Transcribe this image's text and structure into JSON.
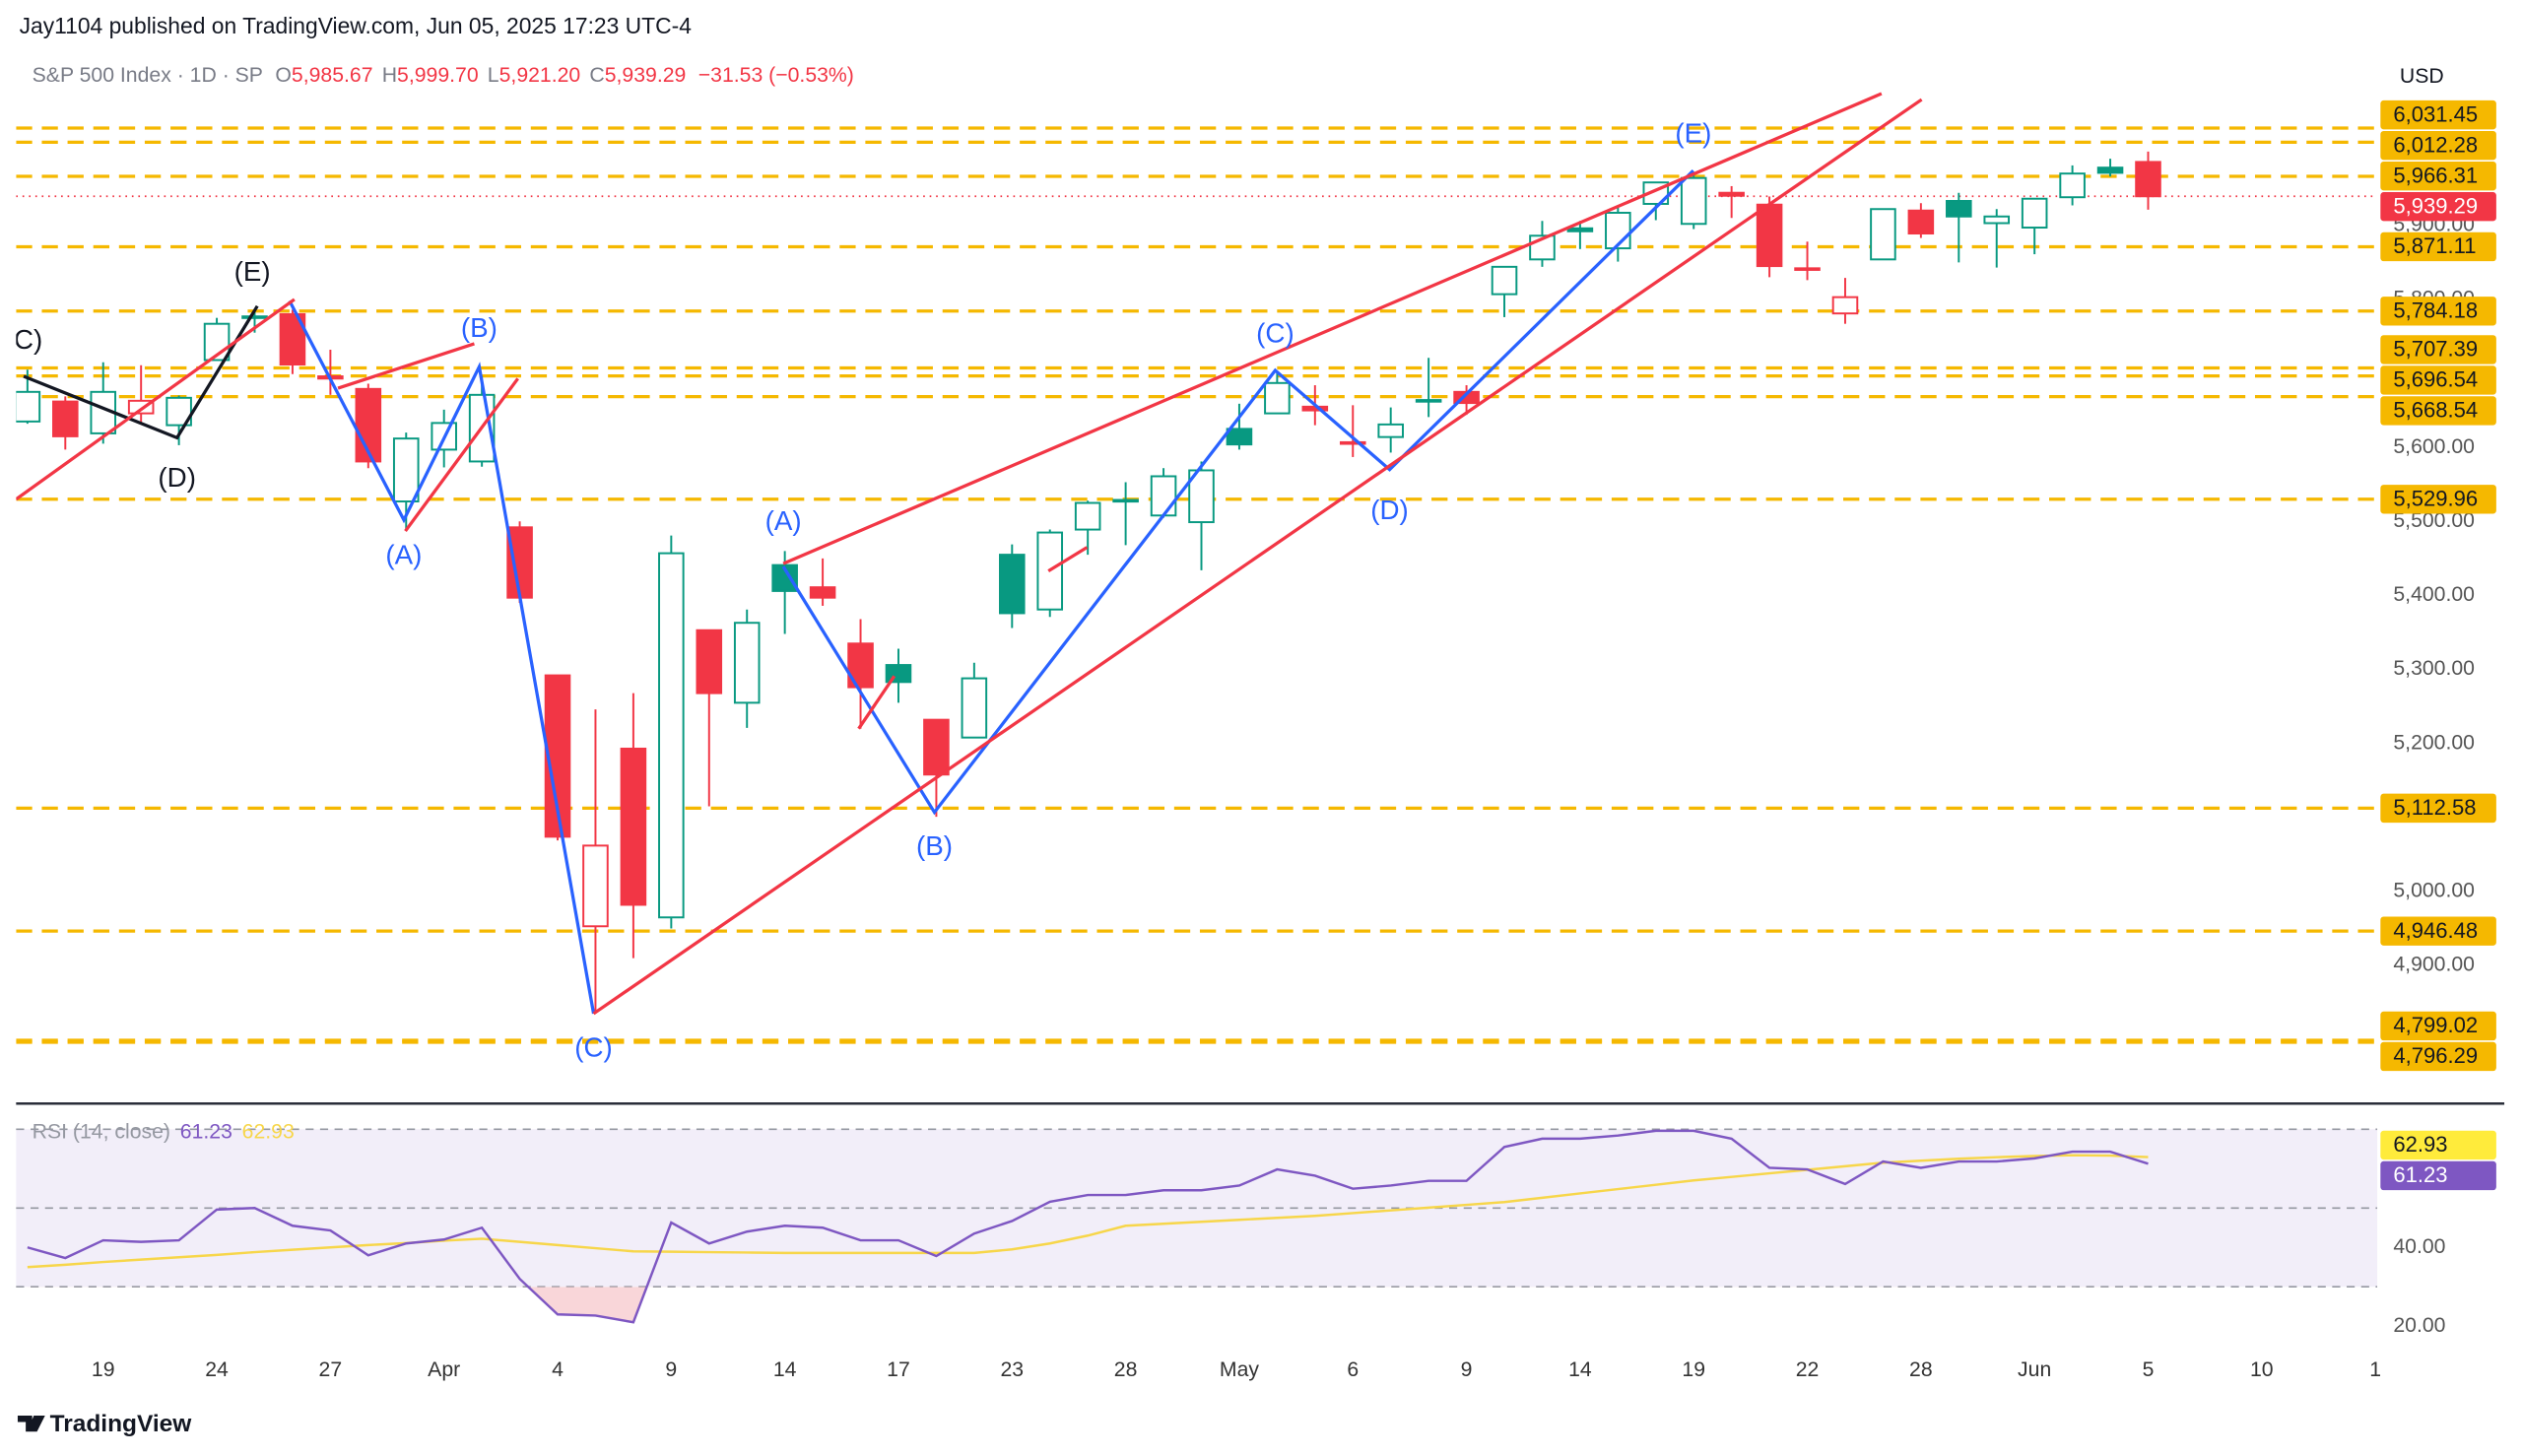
{
  "header": {
    "published": "Jay1104 published on TradingView.com, Jun 05, 2025 17:23 UTC-4",
    "symbol": "S&P 500 Index · 1D · SP",
    "open_label": "O",
    "open": "5,985.67",
    "high_label": "H",
    "high": "5,999.70",
    "low_label": "L",
    "low": "5,921.20",
    "close_label": "C",
    "close": "5,939.29",
    "change": "−31.53 (−0.53%)",
    "currency": "USD"
  },
  "footer": {
    "brand": "TradingView"
  },
  "chart_data": {
    "type": "candlestick",
    "up_color": "#089981",
    "down_color": "#f23645",
    "grid": false,
    "xlim": [
      -0.3,
      62.05
    ],
    "ylim": [
      4720,
      6139
    ],
    "xticks": [
      {
        "value": 2,
        "label": "19"
      },
      {
        "value": 5,
        "label": "24"
      },
      {
        "value": 8,
        "label": "27"
      },
      {
        "value": 11,
        "label": "Apr"
      },
      {
        "value": 14,
        "label": "4"
      },
      {
        "value": 17,
        "label": "9"
      },
      {
        "value": 20,
        "label": "14"
      },
      {
        "value": 23,
        "label": "17"
      },
      {
        "value": 26,
        "label": "23"
      },
      {
        "value": 29,
        "label": "28"
      },
      {
        "value": 32,
        "label": "May"
      },
      {
        "value": 35,
        "label": "6"
      },
      {
        "value": 38,
        "label": "9"
      },
      {
        "value": 41,
        "label": "14"
      },
      {
        "value": 44,
        "label": "19"
      },
      {
        "value": 47,
        "label": "22"
      },
      {
        "value": 50,
        "label": "28"
      },
      {
        "value": 53,
        "label": "Jun"
      },
      {
        "value": 56,
        "label": "5"
      },
      {
        "value": 59,
        "label": "10"
      },
      {
        "value": 62,
        "label": "1"
      }
    ],
    "yticks": [
      {
        "value": 4900,
        "label": "4,900.00"
      },
      {
        "value": 5000,
        "label": "5,000.00"
      },
      {
        "value": 5200,
        "label": "5,200.00"
      },
      {
        "value": 5300,
        "label": "5,300.00"
      },
      {
        "value": 5400,
        "label": "5,400.00"
      },
      {
        "value": 5500,
        "label": "5,500.00"
      },
      {
        "value": 5600,
        "label": "5,600.00"
      },
      {
        "value": 5800,
        "label": "5,800.00"
      },
      {
        "value": 5900,
        "label": "5,900.00"
      }
    ],
    "candles": {
      "open": [
        5635,
        5662,
        5619,
        5646,
        5630,
        5718,
        5776,
        5780,
        5696,
        5679,
        5527,
        5597,
        5581,
        5492,
        5292,
        4953,
        5193,
        4965,
        5353,
        5255,
        5441,
        5411,
        5335,
        5306,
        5232,
        5208,
        5455,
        5381,
        5489,
        5529,
        5508,
        5499,
        5625,
        5646,
        5655,
        5607,
        5614,
        5663,
        5675,
        5807,
        5854,
        5896,
        5869,
        5929,
        5902,
        5944,
        5928,
        5842,
        5781,
        5854,
        5920,
        5933,
        5903,
        5897,
        5938,
        5978,
        5985.67
      ],
      "high": [
        5705,
        5669,
        5715,
        5711,
        5670,
        5775,
        5787,
        5786,
        5732,
        5686,
        5620,
        5651,
        5696,
        5500,
        5292,
        5246,
        5268,
        5481,
        5353,
        5381,
        5460,
        5450,
        5368,
        5328,
        5232,
        5309,
        5469,
        5489,
        5528,
        5553,
        5572,
        5581,
        5659,
        5700,
        5684,
        5657,
        5654,
        5721,
        5684,
        5845,
        5906,
        5906,
        5924,
        5958,
        5968,
        5953,
        5939,
        5878,
        5829,
        5922,
        5930,
        5944,
        5922,
        5937,
        5981,
        5990,
        5999.7
      ],
      "low": [
        5632,
        5597,
        5605,
        5632,
        5603,
        5718,
        5755,
        5699,
        5671,
        5572,
        5488,
        5573,
        5574,
        5390,
        5069,
        4835,
        4910,
        4950,
        5115,
        5221,
        5348,
        5386,
        5220,
        5255,
        5101,
        5208,
        5356,
        5371,
        5455,
        5468,
        5505,
        5434,
        5597,
        5646,
        5630,
        5587,
        5593,
        5641,
        5644,
        5776,
        5844,
        5868,
        5851,
        5907,
        5895,
        5910,
        5830,
        5826,
        5767,
        5854,
        5883,
        5850,
        5843,
        5861,
        5927,
        5966,
        5921.2
      ],
      "close": [
        5675,
        5615,
        5675,
        5663,
        5667,
        5767,
        5777,
        5712,
        5693,
        5581,
        5612,
        5633,
        5671,
        5397,
        5074,
        5062,
        4982,
        5457,
        5268,
        5363,
        5406,
        5397,
        5276,
        5283,
        5158,
        5288,
        5376,
        5485,
        5525,
        5529,
        5561,
        5569,
        5604,
        5687,
        5650,
        5607,
        5631,
        5664,
        5660,
        5844,
        5886,
        5892,
        5917,
        5958,
        5964,
        5940,
        5845,
        5842,
        5803,
        5922,
        5889,
        5912,
        5912,
        5936,
        5970,
        5971,
        5939.29
      ]
    },
    "levels": {
      "color": "#f5b800",
      "values": [
        6031.45,
        6012.28,
        5966.31,
        5871.11,
        5784.18,
        5707.39,
        5696.54,
        5668.54,
        5529.96,
        5112.58,
        4946.48,
        4799.02,
        4796.29
      ],
      "value_labels": [
        "6,031.45",
        "6,012.28",
        "5,966.31",
        "5,871.11",
        "5,784.18",
        "5,707.39",
        "5,696.54",
        "5,668.54",
        "5,529.96",
        "5,112.58",
        "4,946.48",
        "4,799.02",
        "4,796.29"
      ]
    },
    "drawings": [
      {
        "color": "#131722",
        "points": [
          [
            -0.1,
            5696
          ],
          [
            3.95,
            5613
          ],
          [
            6.07,
            5791
          ]
        ]
      },
      {
        "color": "#2962ff",
        "points": [
          [
            6.92,
            5798
          ],
          [
            9.94,
            5502
          ],
          [
            11.93,
            5709
          ],
          [
            14.95,
            4835
          ]
        ]
      },
      {
        "color": "#2962ff",
        "points": [
          [
            19.96,
            5439
          ],
          [
            23.95,
            5107
          ],
          [
            32.95,
            5704
          ],
          [
            35.97,
            5570
          ],
          [
            43.99,
            5974
          ]
        ]
      },
      {
        "color": "#f23645",
        "points": [
          [
            -0.3,
            5530
          ],
          [
            7.05,
            5800
          ]
        ]
      },
      {
        "color": "#f23645",
        "points": [
          [
            9.98,
            5487
          ],
          [
            12.95,
            5693
          ]
        ]
      },
      {
        "color": "#f23645",
        "points": [
          [
            8.2,
            5680
          ],
          [
            11.8,
            5740
          ]
        ]
      },
      {
        "color": "#f23645",
        "points": [
          [
            19.96,
            5443
          ],
          [
            48.96,
            6078
          ]
        ]
      },
      {
        "color": "#f23645",
        "points": [
          [
            14.95,
            4835
          ],
          [
            50.02,
            6070
          ]
        ]
      },
      {
        "color": "#f23645",
        "points": [
          [
            26.96,
            5433
          ],
          [
            27.98,
            5465
          ]
        ]
      },
      {
        "color": "#f23645",
        "points": [
          [
            21.95,
            5220
          ],
          [
            22.89,
            5291
          ]
        ]
      }
    ],
    "annotations": [
      {
        "text": "(C)",
        "x": -0.1,
        "y": 5743,
        "color": "#131722"
      },
      {
        "text": "(D)",
        "x": 3.95,
        "y": 5557,
        "color": "#131722"
      },
      {
        "text": "(E)",
        "x": 5.94,
        "y": 5835,
        "color": "#131722"
      },
      {
        "text": "(A)",
        "x": 9.94,
        "y": 5452,
        "color": "#2962ff"
      },
      {
        "text": "(B)",
        "x": 11.93,
        "y": 5759,
        "color": "#2962ff"
      },
      {
        "text": "(C)",
        "x": 14.95,
        "y": 4787,
        "color": "#2962ff"
      },
      {
        "text": "(A)",
        "x": 19.96,
        "y": 5498,
        "color": "#2962ff"
      },
      {
        "text": "(B)",
        "x": 23.95,
        "y": 5059,
        "color": "#2962ff"
      },
      {
        "text": "(C)",
        "x": 32.95,
        "y": 5752,
        "color": "#2962ff"
      },
      {
        "text": "(D)",
        "x": 35.97,
        "y": 5513,
        "color": "#2962ff"
      },
      {
        "text": "(E)",
        "x": 43.99,
        "y": 6022,
        "color": "#2962ff"
      }
    ],
    "rsi": {
      "name": "RSI (14, close)",
      "color": "#7e57c2",
      "ma_color": "#f7d64a",
      "ylim": [
        11.6,
        75.7
      ],
      "bands": [
        30,
        50,
        70
      ],
      "yticks": [
        {
          "value": 20,
          "label": "20.00"
        },
        {
          "value": 40,
          "label": "40.00"
        }
      ],
      "values": [
        40,
        37.3,
        41.8,
        41.4,
        41.8,
        49.6,
        50,
        45.5,
        44.3,
        38,
        41,
        42,
        45,
        32,
        23,
        22.7,
        21,
        46.3,
        41,
        44,
        45.5,
        45,
        41.8,
        41.8,
        37.8,
        43.5,
        46.7,
        51.6,
        53.3,
        53.3,
        54.5,
        54.5,
        55.7,
        59.8,
        58.2,
        54.9,
        55.7,
        56.9,
        56.9,
        65.5,
        67.6,
        67.6,
        68.4,
        69.6,
        69.6,
        67.6,
        60.2,
        59.8,
        56.1,
        61.8,
        60.2,
        61.8,
        61.8,
        62.6,
        64.3,
        64.3,
        61.23
      ],
      "value_label": "61.23",
      "ma_values": [
        35.0,
        35.6,
        36.3,
        36.9,
        37.5,
        38.1,
        38.8,
        39.4,
        40.0,
        40.6,
        41.1,
        41.7,
        42.2,
        41.4,
        40.6,
        39.8,
        39.0,
        38.9,
        38.8,
        38.7,
        38.6,
        38.6,
        38.6,
        38.6,
        38.6,
        38.6,
        39.5,
        41.0,
        43.0,
        45.5,
        46.0,
        46.5,
        47.0,
        47.5,
        48.0,
        48.7,
        49.4,
        50.1,
        50.8,
        51.5,
        52.6,
        53.7,
        54.8,
        55.9,
        57.0,
        57.9,
        58.8,
        59.7,
        60.6,
        61.5,
        62.0,
        62.5,
        62.9,
        63.2,
        63.4,
        63.3,
        62.93
      ],
      "ma_value_label": "62.93"
    }
  }
}
